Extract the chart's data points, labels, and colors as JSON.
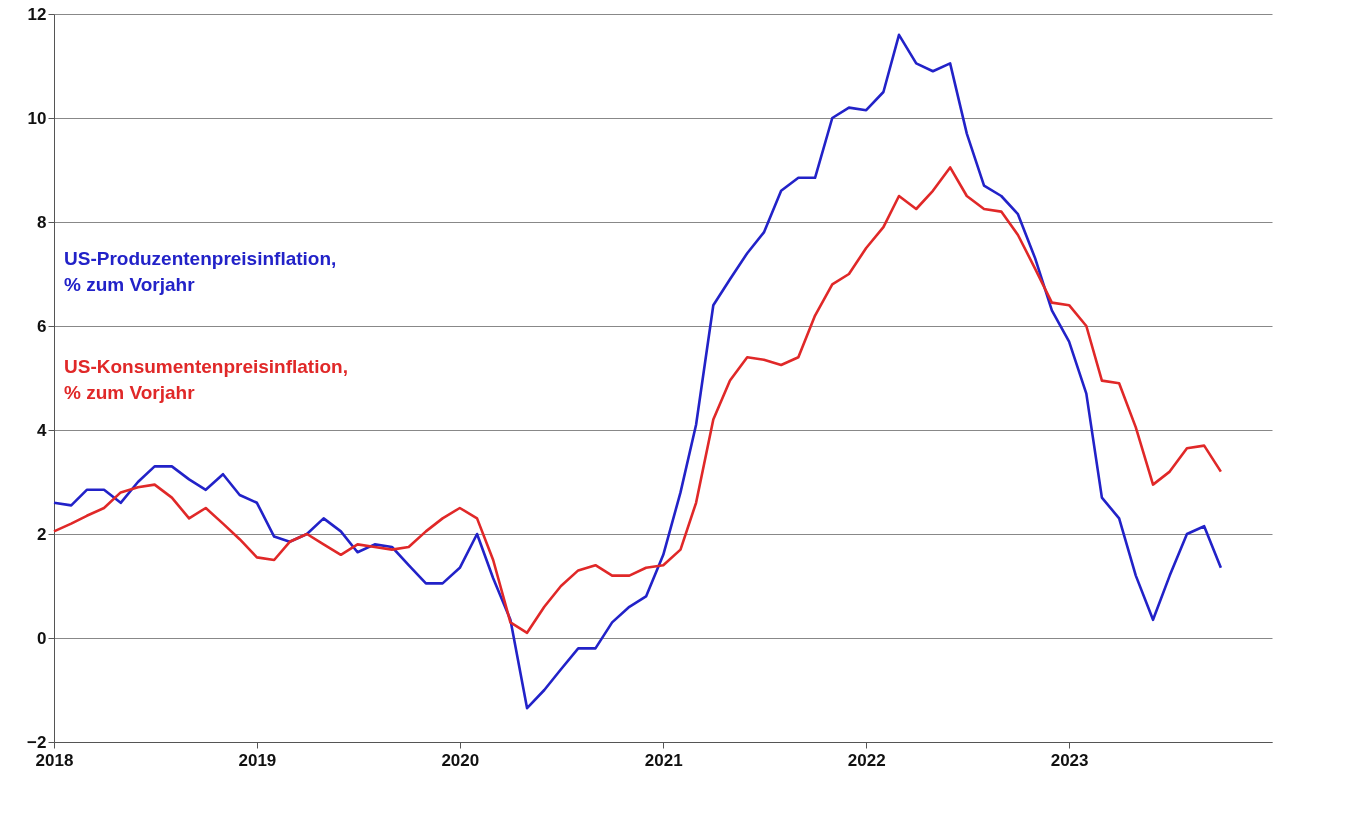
{
  "chart_data": {
    "type": "line",
    "x": [
      "2018-01",
      "2018-02",
      "2018-03",
      "2018-04",
      "2018-05",
      "2018-06",
      "2018-07",
      "2018-08",
      "2018-09",
      "2018-10",
      "2018-11",
      "2018-12",
      "2019-01",
      "2019-02",
      "2019-03",
      "2019-04",
      "2019-05",
      "2019-06",
      "2019-07",
      "2019-08",
      "2019-09",
      "2019-10",
      "2019-11",
      "2019-12",
      "2020-01",
      "2020-02",
      "2020-03",
      "2020-04",
      "2020-05",
      "2020-06",
      "2020-07",
      "2020-08",
      "2020-09",
      "2020-10",
      "2020-11",
      "2020-12",
      "2021-01",
      "2021-02",
      "2021-03",
      "2021-04",
      "2021-05",
      "2021-06",
      "2021-07",
      "2021-08",
      "2021-09",
      "2021-10",
      "2021-11",
      "2021-12",
      "2022-01",
      "2022-02",
      "2022-03",
      "2022-04",
      "2022-05",
      "2022-06",
      "2022-07",
      "2022-08",
      "2022-09",
      "2022-10",
      "2022-11",
      "2022-12",
      "2023-01",
      "2023-02",
      "2023-03",
      "2023-04",
      "2023-05",
      "2023-06",
      "2023-07",
      "2023-08",
      "2023-09",
      "2023-10"
    ],
    "series": [
      {
        "name": "US-Produzentenpreisinflation,\n% zum Vorjahr",
        "color": "#2222c8",
        "values": [
          2.6,
          2.55,
          2.85,
          2.85,
          2.6,
          3.0,
          3.3,
          3.3,
          3.05,
          2.85,
          3.15,
          2.75,
          2.6,
          1.95,
          1.85,
          2.0,
          2.3,
          2.05,
          1.65,
          1.8,
          1.75,
          1.4,
          1.05,
          1.05,
          1.35,
          2.0,
          1.15,
          0.35,
          -1.35,
          -1.0,
          -0.6,
          -0.2,
          -0.2,
          0.3,
          0.6,
          0.8,
          1.6,
          2.8,
          4.1,
          6.4,
          6.9,
          7.4,
          7.8,
          8.6,
          8.85,
          8.85,
          10.0,
          10.2,
          10.15,
          10.5,
          11.6,
          11.05,
          10.9,
          11.05,
          9.7,
          8.7,
          8.5,
          8.15,
          7.3,
          6.3,
          5.7,
          4.7,
          2.7,
          2.3,
          1.2,
          0.35,
          1.2,
          2.0,
          2.15,
          1.35
        ]
      },
      {
        "name": "US-Konsumentenpreisinflation,\n% zum Vorjahr",
        "color": "#e02828",
        "values": [
          2.05,
          2.2,
          2.35,
          2.5,
          2.8,
          2.9,
          2.95,
          2.7,
          2.3,
          2.5,
          2.2,
          1.9,
          1.55,
          1.5,
          1.85,
          2.0,
          1.8,
          1.6,
          1.8,
          1.75,
          1.7,
          1.75,
          2.05,
          2.3,
          2.5,
          2.3,
          1.5,
          0.3,
          0.1,
          0.6,
          1.0,
          1.3,
          1.4,
          1.2,
          1.2,
          1.35,
          1.4,
          1.7,
          2.6,
          4.2,
          4.95,
          5.4,
          5.35,
          5.25,
          5.4,
          6.2,
          6.8,
          7.0,
          7.5,
          7.9,
          8.5,
          8.25,
          8.6,
          9.05,
          8.5,
          8.25,
          8.2,
          7.75,
          7.1,
          6.45,
          6.4,
          6.0,
          4.95,
          4.9,
          4.05,
          2.95,
          3.2,
          3.65,
          3.7,
          3.2
        ]
      }
    ],
    "xlim": [
      "2018",
      "2024"
    ],
    "xticks": [
      "2018",
      "2019",
      "2020",
      "2021",
      "2022",
      "2023"
    ],
    "ylim": [
      -2,
      12
    ],
    "yticks": [
      -2,
      0,
      2,
      4,
      6,
      8,
      10,
      12
    ],
    "grid": "y",
    "legend": false,
    "line_style": "solid",
    "marker": "none"
  }
}
